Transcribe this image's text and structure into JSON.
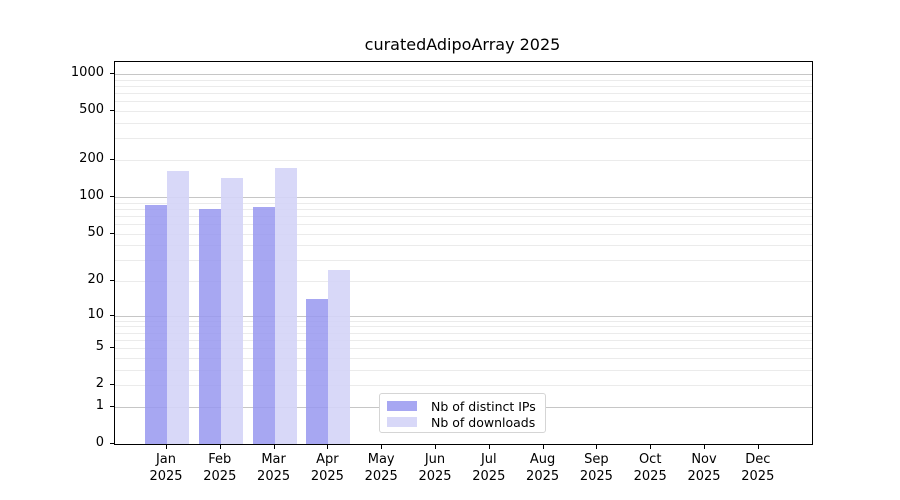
{
  "title": "curatedAdipoArray 2025",
  "chart_data": {
    "type": "bar",
    "title": "curatedAdipoArray 2025",
    "categories": [
      "Jan 2025",
      "Feb 2025",
      "Mar 2025",
      "Apr 2025",
      "May 2025",
      "Jun 2025",
      "Jul 2025",
      "Aug 2025",
      "Sep 2025",
      "Oct 2025",
      "Nov 2025",
      "Dec 2025"
    ],
    "series": [
      {
        "name": "Nb of distinct IPs",
        "color": "#9898f0",
        "alpha": 0.85,
        "values": [
          86,
          79,
          83,
          14,
          0,
          0,
          0,
          0,
          0,
          0,
          0,
          0
        ]
      },
      {
        "name": "Nb of downloads",
        "color": "#d4d4f7",
        "alpha": 0.9,
        "values": [
          164,
          142,
          173,
          25,
          0,
          0,
          0,
          0,
          0,
          0,
          0,
          0
        ]
      }
    ],
    "xlabel": "",
    "ylabel": "",
    "y_axis": {
      "scale": "log10(value+1)",
      "ticks": [
        0,
        1,
        2,
        5,
        10,
        20,
        50,
        100,
        200,
        500,
        1000
      ],
      "major_gridlines": [
        1,
        10,
        100,
        1000
      ],
      "minor_gridline_decades": [
        1,
        10,
        100
      ],
      "top_value": 1250
    },
    "grid": {
      "minor_color": "#ebebeb",
      "major_color": "#c6c6c6",
      "grid_on": true
    },
    "legend": {
      "position": "bottom-center-inside",
      "items": [
        "Nb of distinct IPs",
        "Nb of downloads"
      ]
    }
  }
}
